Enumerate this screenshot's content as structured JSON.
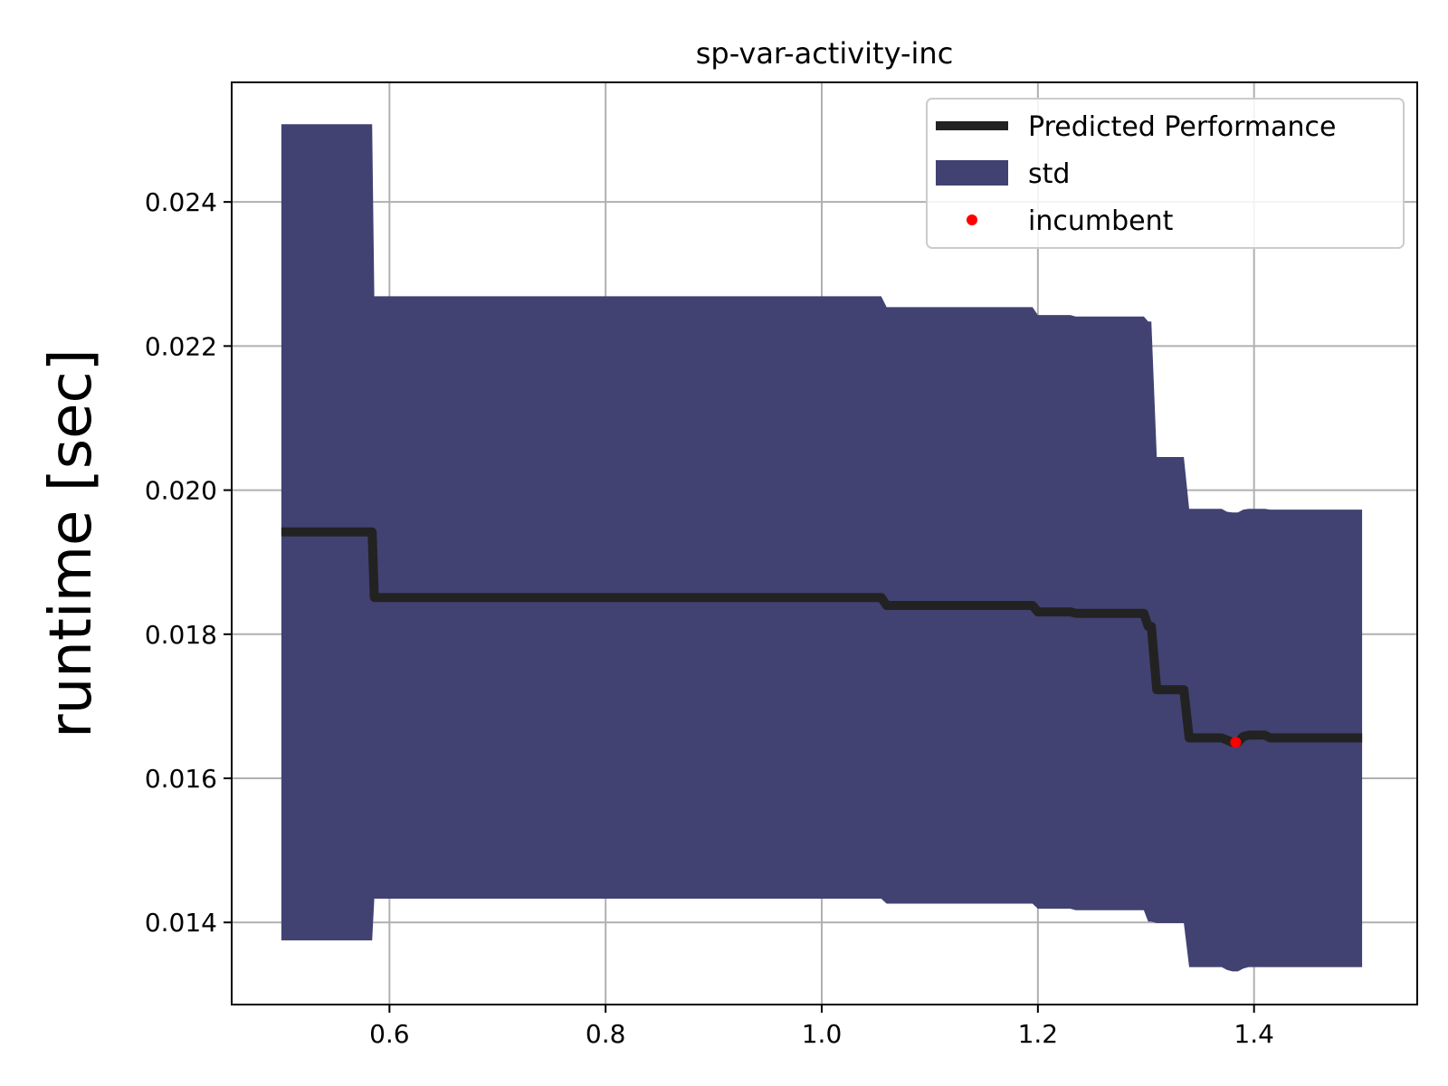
{
  "chart_data": {
    "type": "line",
    "title": "sp-var-activity-inc",
    "xlabel": "",
    "ylabel": "runtime [sec]",
    "xlim": [
      0.454,
      1.551
    ],
    "ylim": [
      0.01286,
      0.02566
    ],
    "grid": true,
    "legend_position": "top-right",
    "xticks": [
      "0.6",
      "0.8",
      "1.0",
      "1.2",
      "1.4"
    ],
    "xtick_values": [
      0.6,
      0.8,
      1.0,
      1.2,
      1.4
    ],
    "yticks": [
      "0.014",
      "0.016",
      "0.018",
      "0.020",
      "0.022",
      "0.024"
    ],
    "ytick_values": [
      0.014,
      0.016,
      0.018,
      0.02,
      0.022,
      0.024
    ],
    "series": [
      {
        "name": "Predicted Performance",
        "kind": "line",
        "color": "#222222",
        "x": [
          0.5,
          0.584,
          0.586,
          1.055,
          1.06,
          1.195,
          1.2,
          1.23,
          1.235,
          1.298,
          1.302,
          1.305,
          1.31,
          1.335,
          1.34,
          1.37,
          1.375,
          1.38,
          1.385,
          1.39,
          1.395,
          1.41,
          1.415,
          1.5
        ],
        "y": [
          0.01942,
          0.01942,
          0.01851,
          0.01851,
          0.0184,
          0.0184,
          0.01831,
          0.01831,
          0.01829,
          0.01829,
          0.01811,
          0.01811,
          0.01723,
          0.01723,
          0.01656,
          0.01656,
          0.01653,
          0.0165,
          0.0165,
          0.01658,
          0.0166,
          0.0166,
          0.01656,
          0.01656
        ]
      },
      {
        "name": "std",
        "kind": "band",
        "color": "#414272",
        "x": [
          0.5,
          0.584,
          0.586,
          1.055,
          1.06,
          1.195,
          1.2,
          1.23,
          1.235,
          1.298,
          1.302,
          1.305,
          1.31,
          1.335,
          1.34,
          1.37,
          1.375,
          1.38,
          1.385,
          1.39,
          1.395,
          1.41,
          1.415,
          1.5
        ],
        "upper": [
          0.02508,
          0.02508,
          0.02269,
          0.02269,
          0.02254,
          0.02254,
          0.02243,
          0.02243,
          0.02241,
          0.02241,
          0.02234,
          0.02234,
          0.02046,
          0.02046,
          0.01974,
          0.01974,
          0.0197,
          0.01969,
          0.01969,
          0.01973,
          0.01974,
          0.01974,
          0.01973,
          0.01973
        ],
        "lower": [
          0.01375,
          0.01375,
          0.01433,
          0.01433,
          0.01426,
          0.01426,
          0.01419,
          0.01419,
          0.01417,
          0.01417,
          0.01401,
          0.01401,
          0.01399,
          0.01399,
          0.01338,
          0.01338,
          0.01334,
          0.01332,
          0.01332,
          0.01336,
          0.01338,
          0.01338,
          0.01338,
          0.01338
        ]
      },
      {
        "name": "incumbent",
        "kind": "scatter",
        "color": "#ff0000",
        "x": [
          1.383
        ],
        "y": [
          0.0165
        ]
      }
    ]
  }
}
